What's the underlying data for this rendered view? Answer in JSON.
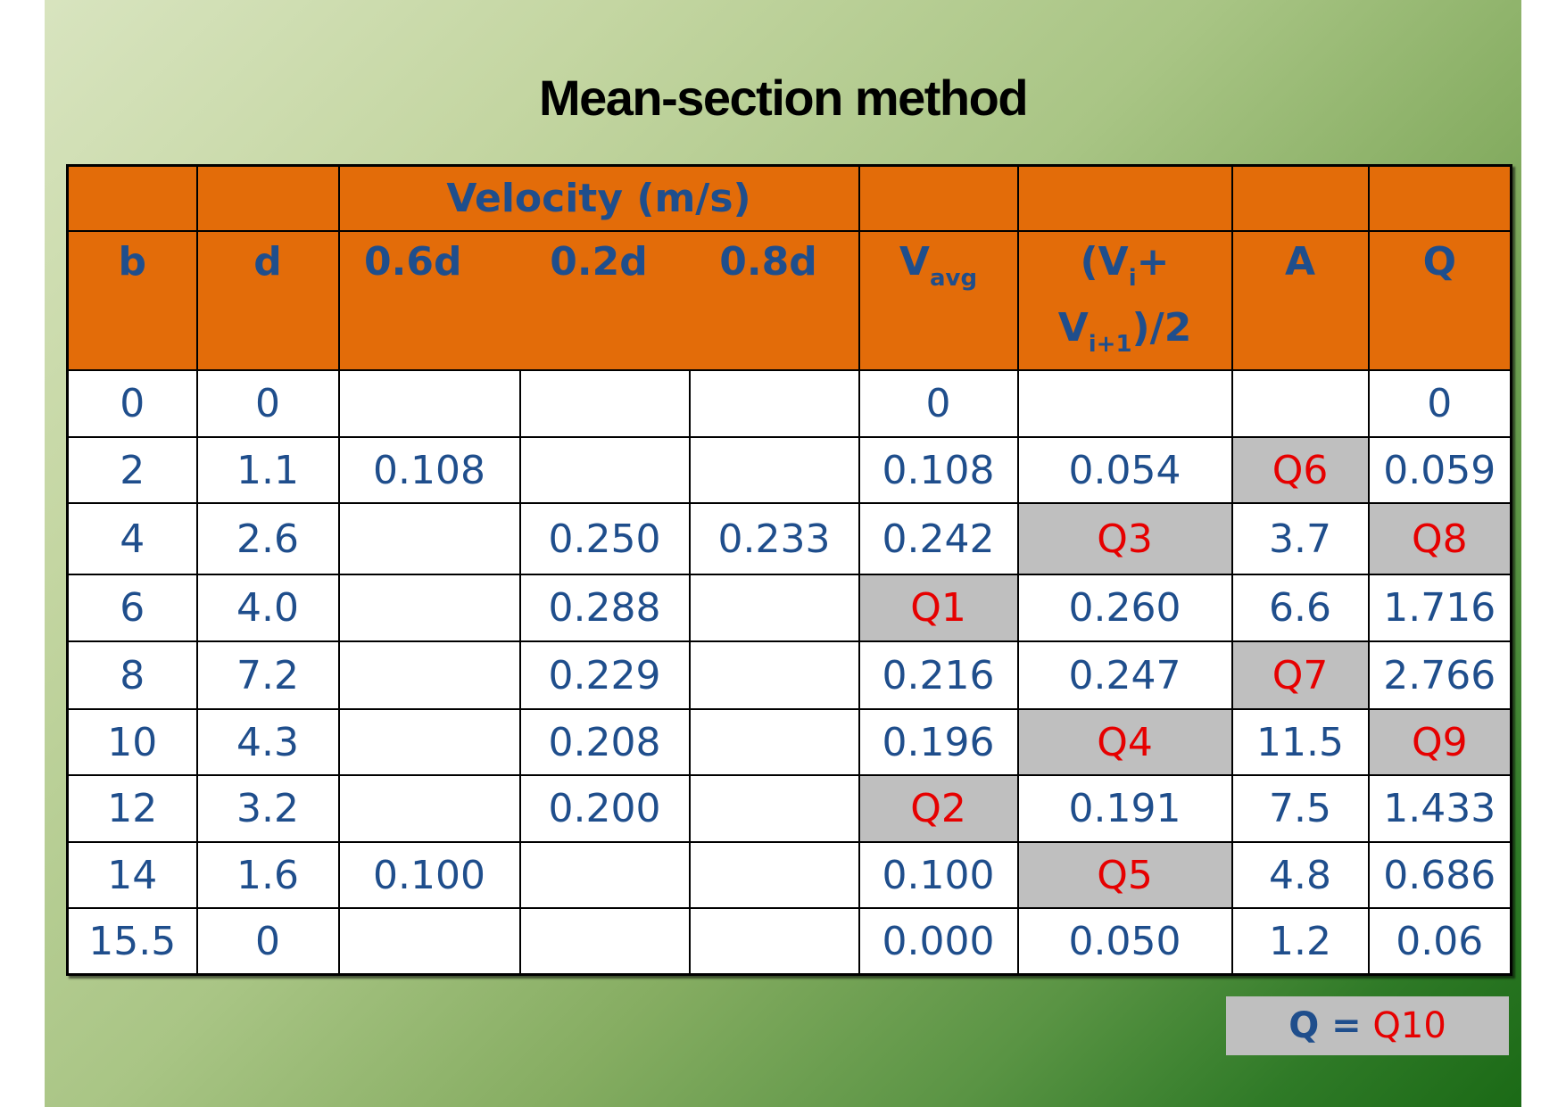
{
  "title": "Mean-section method",
  "header": {
    "group_label": "Velocity (m/s)",
    "columns": {
      "b": "b",
      "d": "d",
      "v06": "0.6d",
      "v02": "0.2d",
      "v08": "0.8d",
      "vavg_main": "V",
      "vavg_sub": "avg",
      "vmean_line1_a": "(V",
      "vmean_line1_sub": "i",
      "vmean_line1_b": "+",
      "vmean_line2_a": "V",
      "vmean_line2_sub": "i+1",
      "vmean_line2_b": ")/2",
      "a": "A",
      "q": "Q"
    }
  },
  "rows": [
    {
      "b": "0",
      "d": "0",
      "v06": "",
      "v02": "",
      "v08": "",
      "vavg": "0",
      "vmean": "",
      "a": "",
      "q": "0"
    },
    {
      "b": "2",
      "d": "1.1",
      "v06": "0.108",
      "v02": "",
      "v08": "",
      "vavg": "0.108",
      "vmean": "0.054",
      "a": "Q6",
      "q": "0.059"
    },
    {
      "b": "4",
      "d": "2.6",
      "v06": "",
      "v02": "0.250",
      "v08": "0.233",
      "vavg": "0.242",
      "vmean": "Q3",
      "a": "3.7",
      "q": "Q8"
    },
    {
      "b": "6",
      "d": "4.0",
      "v06": "",
      "v02": "0.288",
      "v08": "",
      "vavg": "Q1",
      "vmean": "0.260",
      "a": "6.6",
      "q": "1.716"
    },
    {
      "b": "8",
      "d": "7.2",
      "v06": "",
      "v02": "0.229",
      "v08": "",
      "vavg": "0.216",
      "vmean": "0.247",
      "a": "Q7",
      "q": "2.766"
    },
    {
      "b": "10",
      "d": "4.3",
      "v06": "",
      "v02": "0.208",
      "v08": "",
      "vavg": "0.196",
      "vmean": "Q4",
      "a": "11.5",
      "q": "Q9"
    },
    {
      "b": "12",
      "d": "3.2",
      "v06": "",
      "v02": "0.200",
      "v08": "",
      "vavg": "Q2",
      "vmean": "0.191",
      "a": "7.5",
      "q": "1.433"
    },
    {
      "b": "14",
      "d": "1.6",
      "v06": "0.100",
      "v02": "",
      "v08": "",
      "vavg": "0.100",
      "vmean": "Q5",
      "a": "4.8",
      "q": "0.686"
    },
    {
      "b": "15.5",
      "d": "0",
      "v06": "",
      "v02": "",
      "v08": "",
      "vavg": "0.000",
      "vmean": "0.050",
      "a": "1.2",
      "q": "0.06"
    }
  ],
  "result": {
    "label": "Q =",
    "value": "Q10"
  },
  "colors": {
    "header_bg": "#e36c09",
    "header_text": "#1f4e8c",
    "cell_text": "#1f4e8c",
    "unknown_bg": "#bfbfbf",
    "unknown_text": "#e60000"
  }
}
